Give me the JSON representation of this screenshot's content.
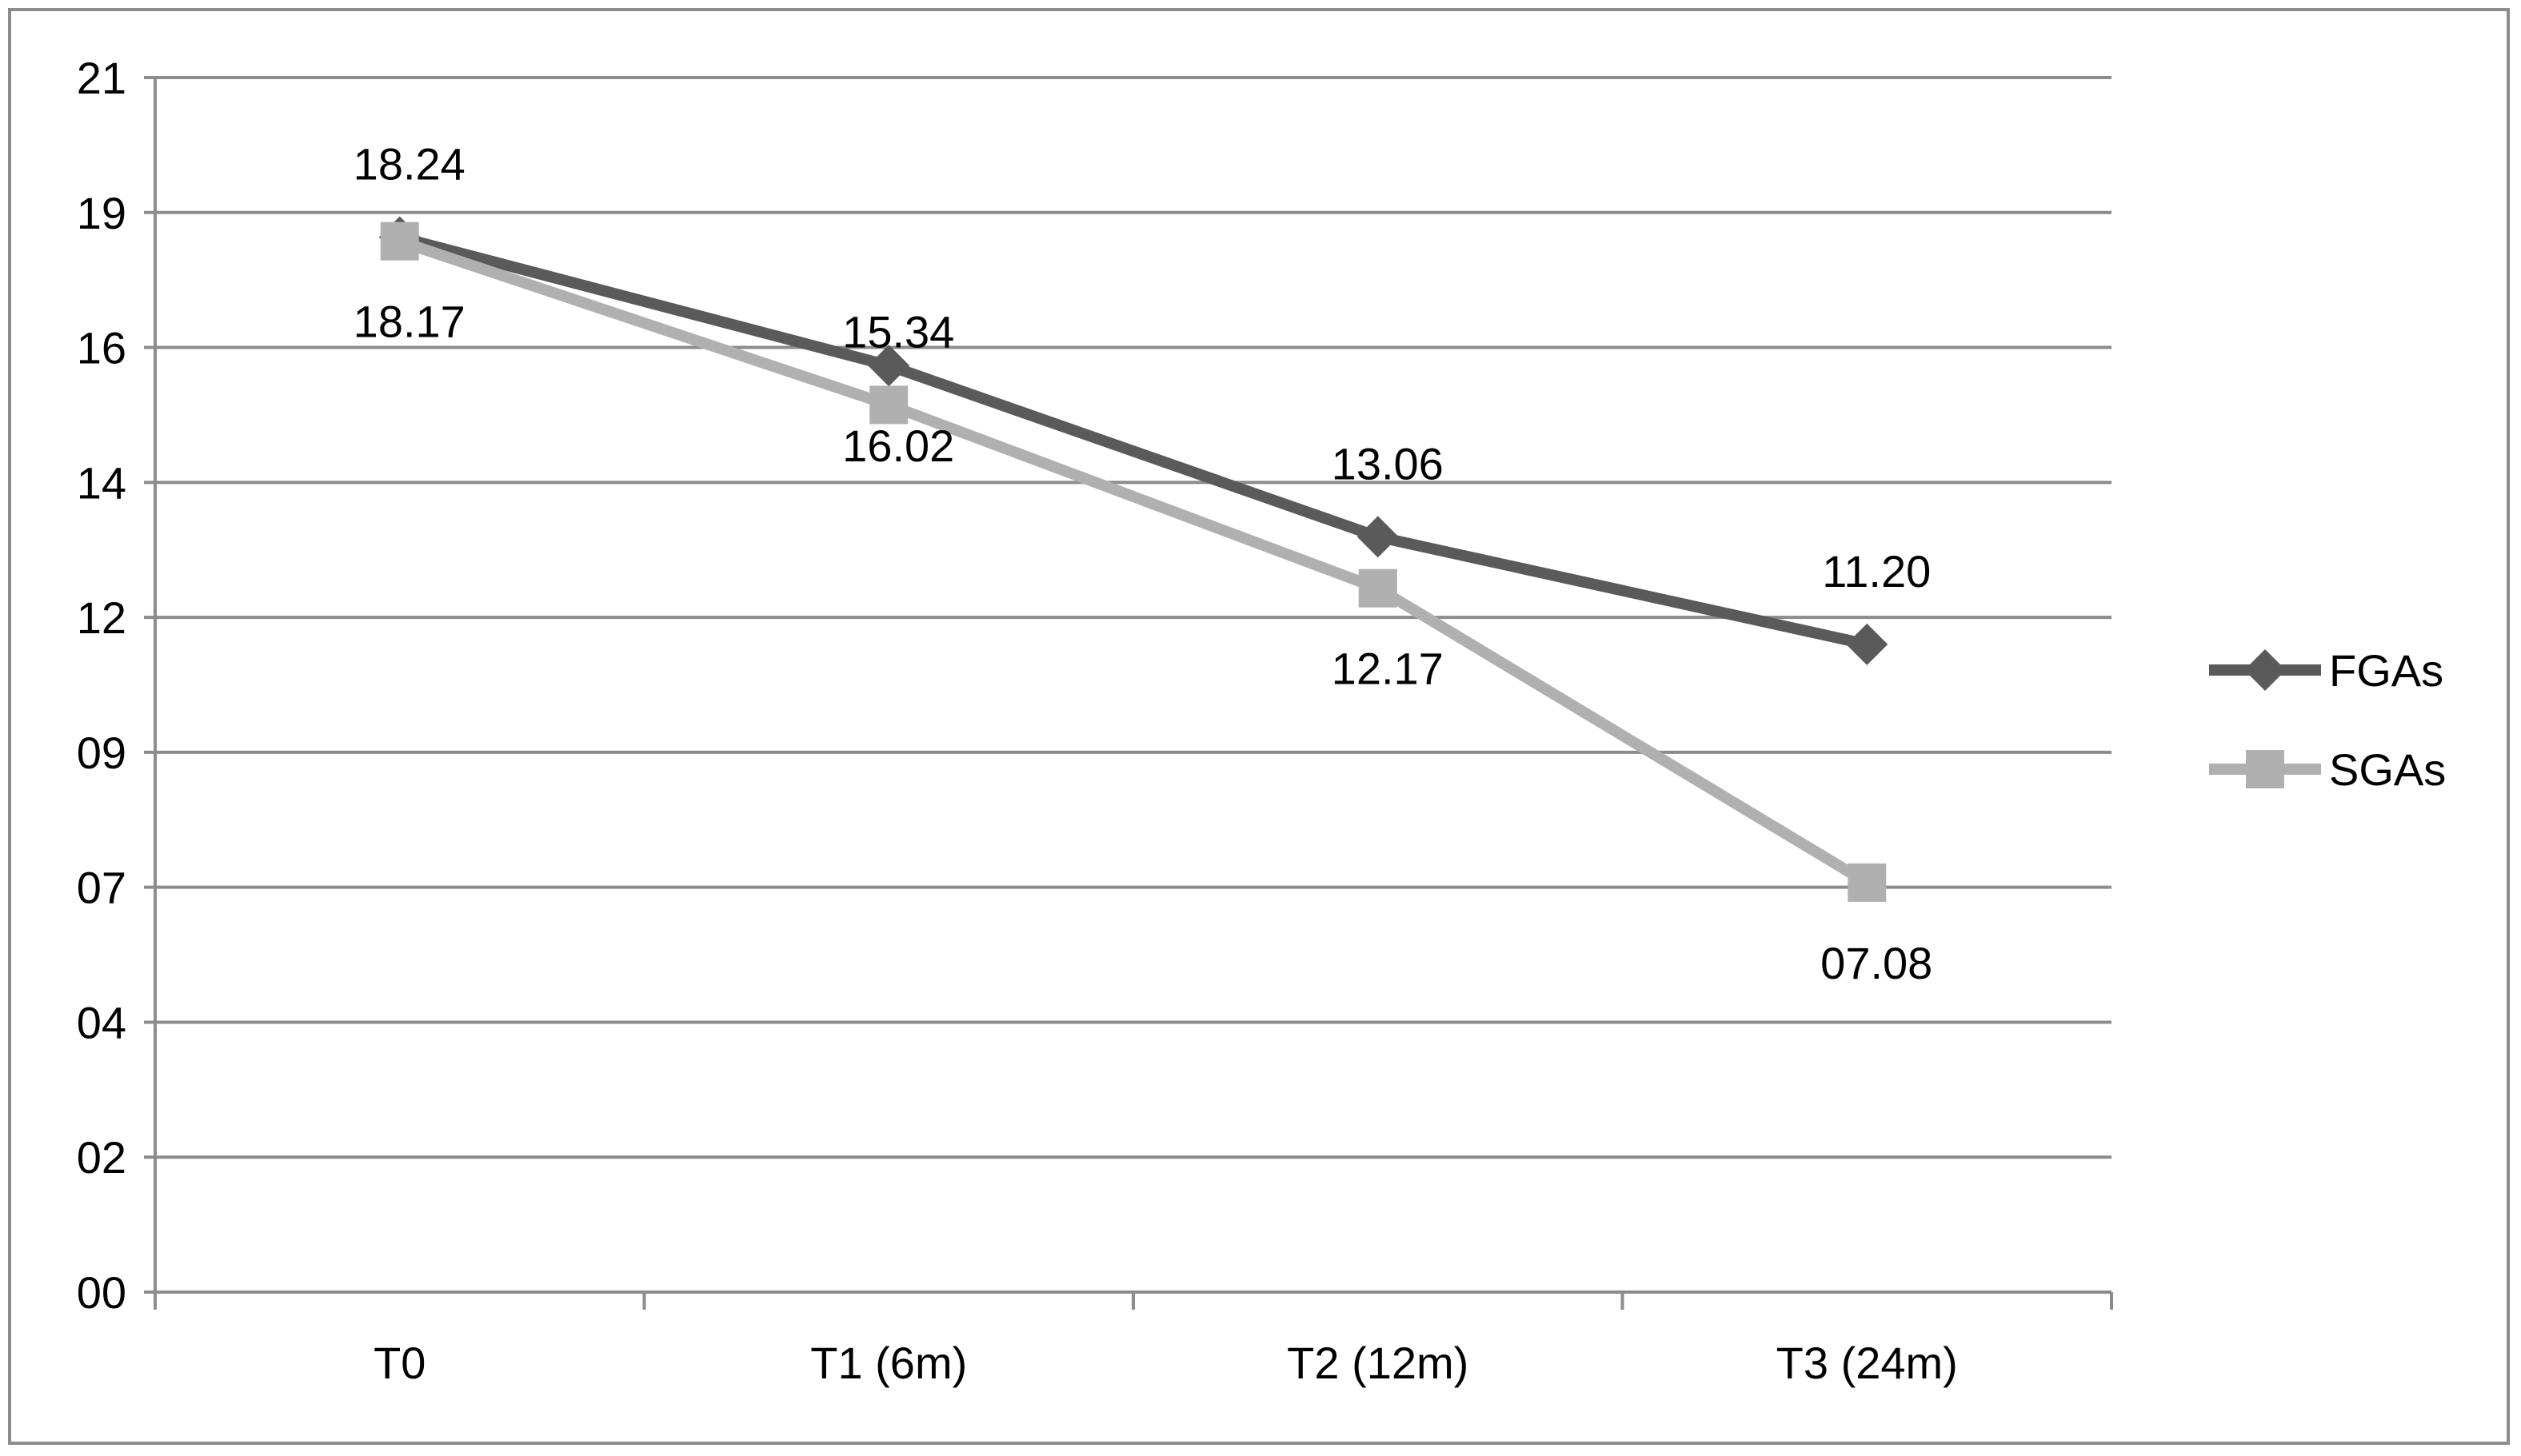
{
  "chart_data": {
    "type": "line",
    "categories": [
      "T0",
      "T1 (6m)",
      "T2 (12m)",
      "T3 (24m)"
    ],
    "y_tick_labels": [
      "00",
      "02",
      "04",
      "07",
      "09",
      "12",
      "14",
      "16",
      "19",
      "21"
    ],
    "ylim": [
      0,
      21
    ],
    "grid": true,
    "legend_position": "right",
    "series": [
      {
        "name": "FGAs",
        "color": "#5a5a5a",
        "marker": "diamond",
        "values": [
          18.24,
          16.02,
          13.06,
          11.2
        ],
        "labels": [
          "18.24",
          "16.02",
          "13.06",
          "11.20"
        ],
        "label_positions": [
          "above",
          "below",
          "above",
          "above"
        ]
      },
      {
        "name": "SGAs",
        "color": "#b0b0b0",
        "marker": "square",
        "values": [
          18.17,
          15.34,
          12.17,
          7.08
        ],
        "labels": [
          "18.17",
          "15.34",
          "12.17",
          "07.08"
        ],
        "label_positions": [
          "below",
          "above",
          "below",
          "below"
        ]
      }
    ]
  }
}
